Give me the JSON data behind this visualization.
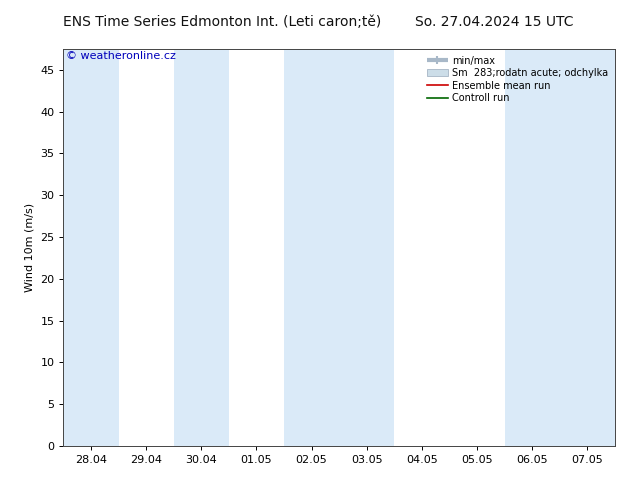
{
  "title_left": "ENS Time Series Edmonton Int. (Leti caron;tě)",
  "title_right": "So. 27.04.2024 15 UTC",
  "watermark": "© weatheronline.cz",
  "ylabel": "Wind 10m (m/s)",
  "ylim": [
    0,
    47.5
  ],
  "yticks": [
    0,
    5,
    10,
    15,
    20,
    25,
    30,
    35,
    40,
    45
  ],
  "xtick_labels": [
    "28.04",
    "29.04",
    "30.04",
    "01.05",
    "02.05",
    "03.05",
    "04.05",
    "05.05",
    "06.05",
    "07.05"
  ],
  "xlim_min": -0.5,
  "xlim_max": 9.5,
  "bg_color": "#ffffff",
  "plot_bg_color": "#ffffff",
  "shaded_bands": [
    {
      "xmin": -0.5,
      "xmax": 0.5
    },
    {
      "xmin": 1.5,
      "xmax": 2.5
    },
    {
      "xmin": 3.5,
      "xmax": 5.5
    },
    {
      "xmin": 7.5,
      "xmax": 9.5
    }
  ],
  "shaded_color": "#daeaf8",
  "legend_entries": [
    {
      "label": "min/max",
      "color": "#a8b8c8",
      "type": "hbar"
    },
    {
      "label": "Sm  283;rodatn acute; odchylka",
      "color": "#ccdde8",
      "type": "rect"
    },
    {
      "label": "Ensemble mean run",
      "color": "#cc0000",
      "type": "line"
    },
    {
      "label": "Controll run",
      "color": "#006600",
      "type": "line"
    }
  ],
  "title_fontsize": 10,
  "axis_fontsize": 8,
  "tick_fontsize": 8,
  "watermark_fontsize": 8,
  "watermark_color": "#0000bb"
}
